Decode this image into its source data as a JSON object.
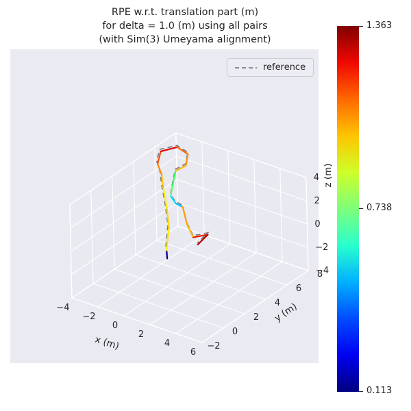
{
  "figure": {
    "background": "#ffffff",
    "axes_background": "#eaeaf2",
    "pane_color": "#e9e9f2",
    "grid_color": "#ffffff",
    "text_color": "#262626"
  },
  "chart_data": {
    "type": "line",
    "subtype": "3d-trajectory",
    "title_lines": [
      "RPE w.r.t. translation part (m)",
      "for delta = 1.0 (m) using all pairs",
      "(with Sim(3) Umeyama alignment)"
    ],
    "xlabel": "x (m)",
    "ylabel": "y (m)",
    "zlabel": "z (m)",
    "xlim": [
      -4,
      6
    ],
    "ylim": [
      -2,
      8
    ],
    "zlim": [
      -4,
      4
    ],
    "xticks": [
      -4,
      -2,
      0,
      2,
      4,
      6
    ],
    "yticks": [
      -2,
      0,
      2,
      4,
      6,
      8
    ],
    "zticks": [
      -4,
      -2,
      0,
      2,
      4
    ],
    "grid": true,
    "legend": {
      "position": "upper-right",
      "entries": [
        {
          "label": "reference",
          "style": "dashed",
          "color": "#7f7f7f"
        }
      ]
    },
    "colorbar": {
      "cmap": "jet",
      "min": 0.113,
      "mid": 0.738,
      "max": 1.363,
      "tick_labels": [
        "1.363",
        "0.738",
        "0.113"
      ],
      "cmap_stops": [
        "#000080",
        "#0000f1",
        "#004cff",
        "#00b0ff",
        "#29ffce",
        "#7dff7a",
        "#ceff29",
        "#ffc400",
        "#ff6800",
        "#f10800",
        "#800000"
      ]
    },
    "series": [
      {
        "name": "reference",
        "type": "dashed-line",
        "color": "#7f7f7f",
        "points": [
          [
            1.05,
            0.9,
            -0.15
          ],
          [
            0.7,
            1.2,
            0.25
          ],
          [
            0.1,
            2.15,
            1.3
          ],
          [
            -0.75,
            2.95,
            2.3
          ],
          [
            -1.65,
            3.75,
            3.1
          ],
          [
            -2.25,
            4.35,
            3.6
          ],
          [
            -3.0,
            4.95,
            3.9
          ],
          [
            -3.35,
            5.7,
            4.25
          ],
          [
            -2.6,
            6.4,
            4.45
          ],
          [
            -1.7,
            6.3,
            4.25
          ],
          [
            -1.3,
            5.6,
            3.85
          ],
          [
            -1.6,
            5.0,
            3.65
          ],
          [
            -1.3,
            4.3,
            2.85
          ],
          [
            -1.1,
            3.9,
            2.35
          ],
          [
            -0.4,
            3.5,
            2.25
          ],
          [
            0.3,
            3.3,
            2.35
          ],
          [
            1.1,
            2.7,
            1.55
          ],
          [
            1.9,
            2.3,
            0.95
          ],
          [
            2.7,
            2.7,
            1.25
          ],
          [
            2.4,
            2.1,
            0.65
          ]
        ]
      },
      {
        "name": "estimate-colored-by-rpe",
        "type": "colored-segments",
        "points": [
          [
            1.2,
            0.7,
            -0.3
          ],
          [
            0.9,
            1.0,
            0.1
          ],
          [
            0.3,
            2.0,
            1.2
          ],
          [
            -0.5,
            2.8,
            2.2
          ],
          [
            -1.4,
            3.6,
            3.0
          ],
          [
            -2.0,
            4.2,
            3.5
          ],
          [
            -2.8,
            4.8,
            3.8
          ],
          [
            -3.2,
            5.6,
            4.2
          ],
          [
            -2.5,
            6.3,
            4.4
          ],
          [
            -1.6,
            6.2,
            4.2
          ],
          [
            -1.2,
            5.5,
            3.8
          ],
          [
            -1.5,
            4.9,
            3.6
          ],
          [
            -1.2,
            4.2,
            2.8
          ],
          [
            -1.0,
            3.8,
            2.3
          ],
          [
            -0.3,
            3.4,
            2.2
          ],
          [
            0.4,
            3.2,
            2.3
          ],
          [
            1.2,
            2.6,
            1.5
          ],
          [
            2.0,
            2.2,
            0.9
          ],
          [
            2.8,
            2.6,
            1.2
          ],
          [
            2.5,
            2.0,
            0.6
          ]
        ],
        "segment_colors": [
          "#00008f",
          "#ffe800",
          "#ffd900",
          "#fff200",
          "#ffc800",
          "#ff8c00",
          "#ff4e00",
          "#e00000",
          "#ff6a00",
          "#ff9400",
          "#ffb300",
          "#3dff66",
          "#62ff62",
          "#00e0ff",
          "#00c3ff",
          "#ff9e00",
          "#ffb700",
          "#ed1c00",
          "#b80000"
        ]
      }
    ]
  }
}
